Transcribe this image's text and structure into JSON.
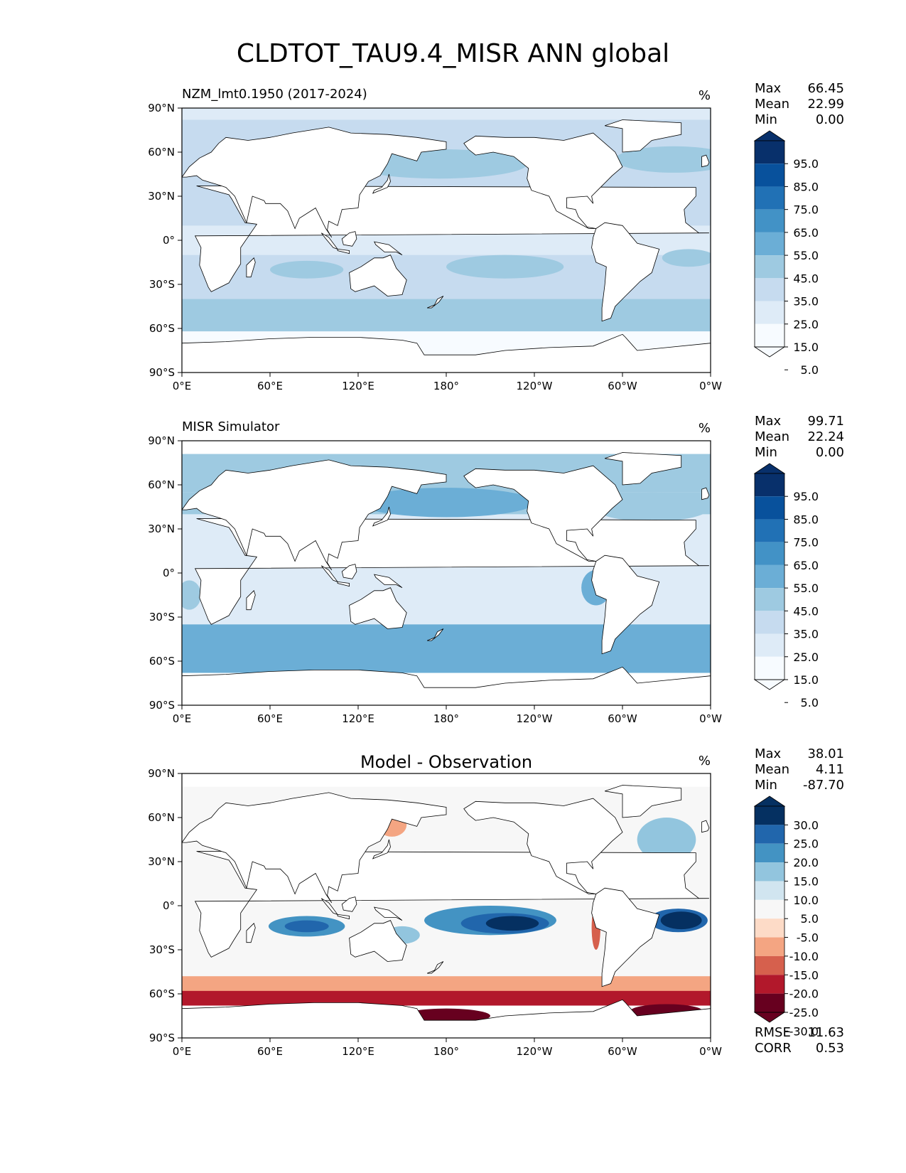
{
  "figure_title": "CLDTOT_TAU9.4_MISR ANN global",
  "colors": {
    "blues": [
      "#f7fbff",
      "#deebf7",
      "#c6dbef",
      "#9ecae1",
      "#6baed6",
      "#4292c6",
      "#2171b5",
      "#08519c",
      "#08306b"
    ],
    "diverging": [
      "#67001f",
      "#b2182b",
      "#d6604d",
      "#f4a582",
      "#fddbc7",
      "#f7f7f7",
      "#d1e5f0",
      "#92c5de",
      "#4393c3",
      "#2166ac",
      "#053061"
    ],
    "land": "#ffffff",
    "coast": "#000000"
  },
  "chart_data": [
    {
      "type": "heatmap",
      "title": "NZM_lmt0.1950 (2017-2024)",
      "units": "%",
      "stats": {
        "max": "66.45",
        "mean": "22.99",
        "min": "0.00"
      },
      "colorbar_ticks": [
        "95.0",
        "85.0",
        "75.0",
        "65.0",
        "55.0",
        "45.0",
        "35.0",
        "25.0",
        "15.0",
        "5.0"
      ],
      "x_ticks": [
        "0°E",
        "60°E",
        "120°E",
        "180°",
        "120°W",
        "60°W",
        "0°W"
      ],
      "y_ticks": [
        "90°N",
        "60°N",
        "30°N",
        "0°",
        "30°S",
        "60°S",
        "90°S"
      ],
      "xlim": [
        0,
        360
      ],
      "ylim": [
        -90,
        90
      ]
    },
    {
      "type": "heatmap",
      "title": "MISR Simulator",
      "units": "%",
      "stats": {
        "max": "99.71",
        "mean": "22.24",
        "min": "0.00"
      },
      "colorbar_ticks": [
        "95.0",
        "85.0",
        "75.0",
        "65.0",
        "55.0",
        "45.0",
        "35.0",
        "25.0",
        "15.0",
        "5.0"
      ],
      "x_ticks": [
        "0°E",
        "60°E",
        "120°E",
        "180°",
        "120°W",
        "60°W",
        "0°W"
      ],
      "y_ticks": [
        "90°N",
        "60°N",
        "30°N",
        "0°",
        "30°S",
        "60°S",
        "90°S"
      ],
      "xlim": [
        0,
        360
      ],
      "ylim": [
        -90,
        90
      ]
    },
    {
      "type": "heatmap",
      "title": "Model - Observation",
      "units": "%",
      "stats": {
        "max": "38.01",
        "mean": "4.11",
        "min": "-87.70"
      },
      "metrics": {
        "rmse": "11.63",
        "corr": "0.53"
      },
      "colorbar_ticks": [
        "30.0",
        "25.0",
        "20.0",
        "15.0",
        "10.0",
        "5.0",
        "-5.0",
        "-10.0",
        "-15.0",
        "-20.0",
        "-25.0",
        "-30.0"
      ],
      "x_ticks": [
        "0°E",
        "60°E",
        "120°E",
        "180°",
        "120°W",
        "60°W",
        "0°W"
      ],
      "y_ticks": [
        "90°N",
        "60°N",
        "30°N",
        "0°",
        "30°S",
        "60°S",
        "90°S"
      ],
      "xlim": [
        0,
        360
      ],
      "ylim": [
        -90,
        90
      ]
    }
  ],
  "labels": {
    "max": "Max",
    "mean": "Mean",
    "min": "Min",
    "rmse": "RMSE",
    "corr": "CORR"
  }
}
